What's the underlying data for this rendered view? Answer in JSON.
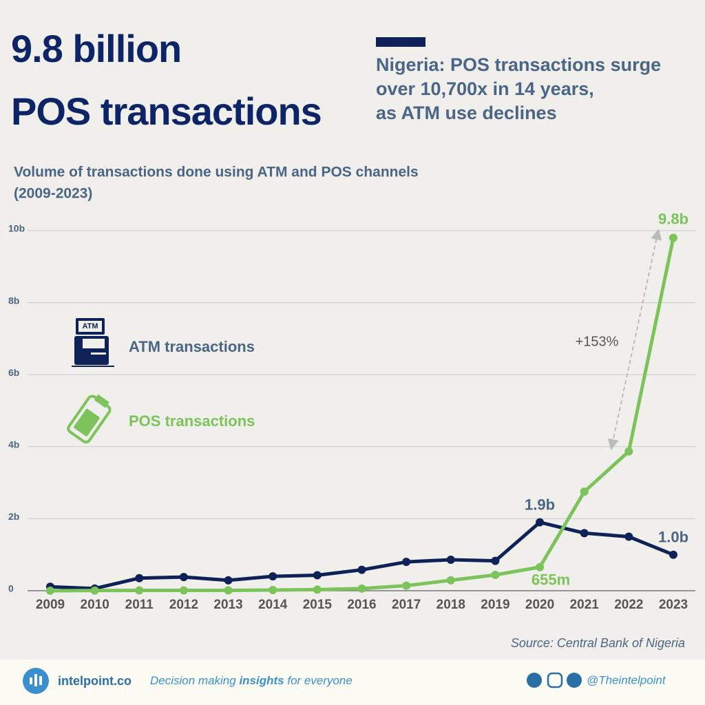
{
  "header": {
    "headline": [
      "9.8 billion",
      "POS transactions"
    ],
    "subheadline": [
      "Nigeria: POS transactions surge",
      "over 10,700x in 14 years,",
      "as ATM use declines"
    ]
  },
  "chart_data": {
    "type": "line",
    "title": [
      "Volume of transactions done using ATM and POS channels",
      "(2009-2023)"
    ],
    "categories": [
      "2009",
      "2010",
      "2011",
      "2012",
      "2013",
      "2014",
      "2015",
      "2016",
      "2017",
      "2018",
      "2019",
      "2020",
      "2021",
      "2022",
      "2023"
    ],
    "series": [
      {
        "name": "ATM transactions",
        "color": "#0f2257",
        "values": [
          0.11,
          0.06,
          0.35,
          0.38,
          0.29,
          0.4,
          0.43,
          0.58,
          0.8,
          0.86,
          0.83,
          1.9,
          1.6,
          1.5,
          1.0
        ],
        "value_labels": [
          null,
          null,
          null,
          null,
          null,
          null,
          null,
          null,
          null,
          null,
          null,
          "1.9b",
          null,
          null,
          "1.0b"
        ]
      },
      {
        "name": "POS transactions",
        "color": "#7dc35b",
        "values": [
          0.0009,
          0.005,
          0.01,
          0.01,
          0.01,
          0.02,
          0.03,
          0.06,
          0.14,
          0.29,
          0.44,
          0.655,
          2.75,
          3.87,
          9.8
        ],
        "value_labels": [
          null,
          null,
          null,
          null,
          null,
          null,
          null,
          null,
          null,
          null,
          null,
          "655m",
          null,
          null,
          "9.8b"
        ]
      }
    ],
    "ylim": [
      0,
      10
    ],
    "yticks": [
      0,
      {
        "value": 2,
        "label": "2b"
      },
      {
        "value": 4,
        "label": "4b"
      },
      {
        "value": 6,
        "label": "6b"
      },
      {
        "value": 8,
        "label": "8b"
      },
      {
        "value": 10,
        "label": "10b"
      }
    ],
    "grid": true,
    "annotation": "+153%",
    "source": "Source: Central Bank of Nigeria"
  },
  "footer": {
    "brand": "intelpoint.co",
    "tagline": [
      "Decision making ",
      "insights",
      " for everyone"
    ],
    "handle": "@Theintelpoint"
  }
}
